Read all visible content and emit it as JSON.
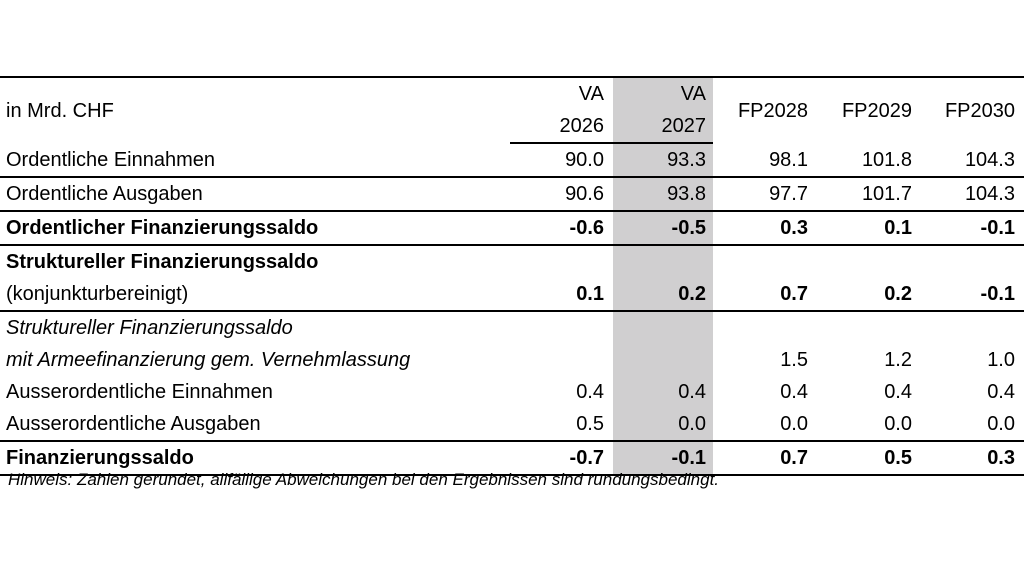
{
  "header": {
    "unit_label": "in Mrd. CHF",
    "columns": [
      {
        "line1": "VA",
        "line2": "2026"
      },
      {
        "line1": "VA",
        "line2": "2027"
      },
      {
        "line1": "",
        "line2": "FP2028"
      },
      {
        "line1": "",
        "line2": "FP2029"
      },
      {
        "line1": "",
        "line2": "FP2030"
      }
    ]
  },
  "rows": [
    {
      "label": "Ordentliche Einnahmen",
      "values": [
        "90.0",
        "93.3",
        "98.1",
        "101.8",
        "104.3"
      ]
    },
    {
      "label": "Ordentliche Ausgaben",
      "values": [
        "90.6",
        "93.8",
        "97.7",
        "101.7",
        "104.3"
      ]
    },
    {
      "label": "Ordentlicher Finanzierungssaldo",
      "values": [
        "-0.6",
        "-0.5",
        "0.3",
        "0.1",
        "-0.1"
      ]
    },
    {
      "label": "Struktureller Finanzierungssaldo",
      "label2": "(konjunkturbereinigt)",
      "values": [
        "0.1",
        "0.2",
        "0.7",
        "0.2",
        "-0.1"
      ]
    },
    {
      "label": "Struktureller Finanzierungssaldo",
      "label2": "mit Armeefinanzierung gem. Vernehmlassung",
      "values": [
        "",
        "",
        "1.5",
        "1.2",
        "1.0"
      ]
    },
    {
      "label": "Ausserordentliche Einnahmen",
      "values": [
        "0.4",
        "0.4",
        "0.4",
        "0.4",
        "0.4"
      ]
    },
    {
      "label": "Ausserordentliche Ausgaben",
      "values": [
        "0.5",
        "0.0",
        "0.0",
        "0.0",
        "0.0"
      ]
    },
    {
      "label": "Finanzierungssaldo",
      "values": [
        "-0.7",
        "-0.1",
        "0.7",
        "0.5",
        "0.3"
      ]
    }
  ],
  "note": "Hinweis: Zahlen gerundet, allfällige Abweichungen bei den Ergebnissen sind rundungsbedingt.",
  "colors": {
    "shaded_column": "#d0cfd0",
    "rule": "#000000"
  }
}
